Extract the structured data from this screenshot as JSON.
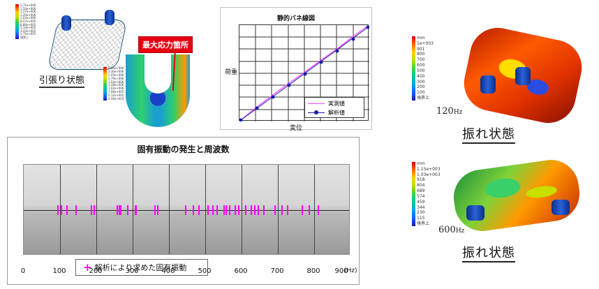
{
  "tension_section": {
    "caption": "引張り状態",
    "legend_top": [
      "1.71e+006",
      "1.54e+006",
      "1.37e+006",
      "1.20e+006",
      "1.03e+006",
      "8.57e+005",
      "6.86e+005",
      "5.14e+005",
      "3.43e+005",
      "1.71e+005"
    ],
    "legend_bottom_label": "境界上"
  },
  "stress_section": {
    "callout": "最大応力箇所",
    "legend": [
      "2.56e+006",
      "2.30e+006",
      "2.05e+006",
      "1.79e+006",
      "1.54e+006",
      "1.28e+006",
      "1.02e+006",
      "7.68e+005",
      "5.12e+005",
      "2.56e+005"
    ]
  },
  "spring_chart": {
    "title": "静的バネ線図",
    "ylabel": "荷重",
    "xlabel": "変位",
    "legend": [
      {
        "label": "実測値",
        "color": "#ff40ff"
      },
      {
        "label": "解析値",
        "color": "#1a1aa8"
      }
    ]
  },
  "freq_chart": {
    "title": "固有振動の発生と周波数",
    "legend": "解析により求めた固有振動",
    "x_ticks": [
      "0",
      "100",
      "200",
      "300",
      "400",
      "500",
      "600",
      "700",
      "800",
      "900"
    ],
    "unit": "(Hz)"
  },
  "vibration_1": {
    "unit": "mm",
    "legend": [
      "1e+003",
      "901",
      "800",
      "700",
      "600",
      "500",
      "400",
      "300",
      "200",
      "100"
    ],
    "legend_bottom_label": "境界上",
    "freq_value": "120",
    "freq_unit": "Hz",
    "state": "振れ状態"
  },
  "vibration_2": {
    "unit": "mm",
    "legend": [
      "1.15e+003",
      "1.03e+003",
      "918",
      "804",
      "689",
      "574",
      "459",
      "344",
      "230",
      "115"
    ],
    "legend_bottom_label": "境界上",
    "freq_value": "600",
    "freq_unit": "Hz",
    "state": "振れ状態"
  },
  "chart_data": [
    {
      "type": "line",
      "title": "静的バネ線図",
      "xlabel": "変位",
      "ylabel": "荷重",
      "grid": true,
      "legend_position": "lower right",
      "series": [
        {
          "name": "実測値",
          "x": [
            0,
            1,
            2,
            3,
            4,
            5,
            6,
            7,
            8
          ],
          "values": [
            0,
            1.05,
            2.05,
            3.0,
            3.95,
            4.95,
            5.9,
            6.9,
            8.05
          ]
        },
        {
          "name": "解析値",
          "x": [
            0,
            1,
            2,
            3,
            4,
            5,
            6,
            7,
            8
          ],
          "values": [
            0,
            1,
            2,
            3,
            4,
            5,
            6,
            7,
            8
          ]
        }
      ]
    },
    {
      "type": "scatter",
      "title": "固有振動の発生と周波数",
      "xlabel": "(Hz)",
      "xlim": [
        0,
        900
      ],
      "legend": [
        "解析により求めた固有振動"
      ],
      "series": [
        {
          "name": "解析により求めた固有振動",
          "x": [
            92,
            102,
            118,
            142,
            185,
            193,
            255,
            262,
            266,
            285,
            305,
            307,
            360,
            368,
            445,
            465,
            480,
            505,
            520,
            530,
            550,
            555,
            565,
            580,
            590,
            610,
            625,
            635,
            645,
            660,
            690,
            710,
            725,
            765,
            785,
            810
          ]
        }
      ]
    }
  ]
}
